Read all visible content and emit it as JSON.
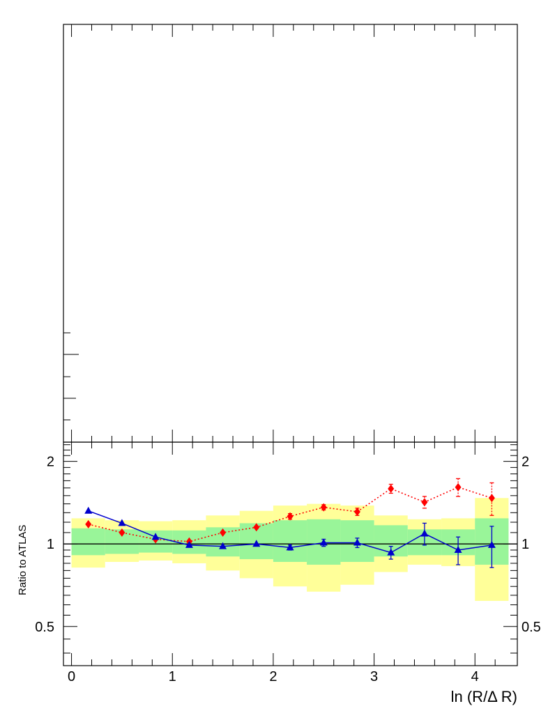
{
  "chart_data": {
    "type": "line",
    "xlabel": "ln (R/Δ R)",
    "ylabel": "Ratio to ATLAS",
    "xlim": [
      -0.08,
      4.42
    ],
    "ylim": [
      0.36,
      2.35
    ],
    "y_log": true,
    "x_ticks": [
      0,
      1,
      2,
      3,
      4
    ],
    "x_tick_labels": [
      "0",
      "1",
      "2",
      "3",
      "4"
    ],
    "y_ticks": [
      0.5,
      1,
      2
    ],
    "y_tick_labels": [
      "0.5",
      "1",
      "2"
    ],
    "reference_line": 1,
    "colors": {
      "band_outer": "#ffff99",
      "band_inner": "#99f599",
      "series_red": "#ff0000",
      "series_blue": "#0000cc"
    },
    "bands": [
      {
        "x0": 0.0,
        "x1": 0.333,
        "outer": [
          0.82,
          1.24
        ],
        "inner": [
          0.91,
          1.14
        ]
      },
      {
        "x0": 0.333,
        "x1": 0.667,
        "outer": [
          0.86,
          1.22
        ],
        "inner": [
          0.92,
          1.13
        ]
      },
      {
        "x0": 0.667,
        "x1": 1.0,
        "outer": [
          0.87,
          1.21
        ],
        "inner": [
          0.93,
          1.12
        ]
      },
      {
        "x0": 1.0,
        "x1": 1.333,
        "outer": [
          0.85,
          1.22
        ],
        "inner": [
          0.92,
          1.12
        ]
      },
      {
        "x0": 1.333,
        "x1": 1.667,
        "outer": [
          0.8,
          1.27
        ],
        "inner": [
          0.9,
          1.15
        ]
      },
      {
        "x0": 1.667,
        "x1": 2.0,
        "outer": [
          0.75,
          1.32
        ],
        "inner": [
          0.88,
          1.19
        ]
      },
      {
        "x0": 2.0,
        "x1": 2.333,
        "outer": [
          0.7,
          1.38
        ],
        "inner": [
          0.86,
          1.22
        ]
      },
      {
        "x0": 2.333,
        "x1": 2.667,
        "outer": [
          0.67,
          1.4
        ],
        "inner": [
          0.84,
          1.23
        ]
      },
      {
        "x0": 2.667,
        "x1": 3.0,
        "outer": [
          0.71,
          1.38
        ],
        "inner": [
          0.86,
          1.22
        ]
      },
      {
        "x0": 3.0,
        "x1": 3.333,
        "outer": [
          0.79,
          1.27
        ],
        "inner": [
          0.9,
          1.17
        ]
      },
      {
        "x0": 3.333,
        "x1": 3.667,
        "outer": [
          0.84,
          1.23
        ],
        "inner": [
          0.91,
          1.13
        ]
      },
      {
        "x0": 3.667,
        "x1": 4.0,
        "outer": [
          0.83,
          1.24
        ],
        "inner": [
          0.91,
          1.13
        ]
      },
      {
        "x0": 4.0,
        "x1": 4.333,
        "outer": [
          0.62,
          1.47
        ],
        "inner": [
          0.84,
          1.24
        ]
      }
    ],
    "series": [
      {
        "marker": "diamond",
        "line": "dotted",
        "color": "#ff0000",
        "x": [
          0.167,
          0.5,
          0.833,
          1.167,
          1.5,
          1.833,
          2.167,
          2.5,
          2.833,
          3.167,
          3.5,
          3.833,
          4.167
        ],
        "y": [
          1.18,
          1.1,
          1.04,
          1.02,
          1.1,
          1.15,
          1.26,
          1.36,
          1.31,
          1.59,
          1.42,
          1.61,
          1.47
        ],
        "err": [
          0.02,
          0.02,
          0.02,
          0.02,
          0.02,
          0.02,
          0.03,
          0.03,
          0.04,
          0.06,
          0.07,
          0.12,
          0.2
        ]
      },
      {
        "marker": "triangle",
        "line": "solid",
        "color": "#0000cc",
        "x": [
          0.167,
          0.5,
          0.833,
          1.167,
          1.5,
          1.833,
          2.167,
          2.5,
          2.833,
          3.167,
          3.5,
          3.833,
          4.167
        ],
        "y": [
          1.32,
          1.19,
          1.06,
          0.99,
          0.98,
          1.0,
          0.97,
          1.01,
          1.01,
          0.93,
          1.09,
          0.95,
          0.99
        ],
        "err": [
          0.01,
          0.01,
          0.01,
          0.01,
          0.01,
          0.01,
          0.02,
          0.03,
          0.04,
          0.05,
          0.1,
          0.11,
          0.17
        ]
      }
    ]
  }
}
